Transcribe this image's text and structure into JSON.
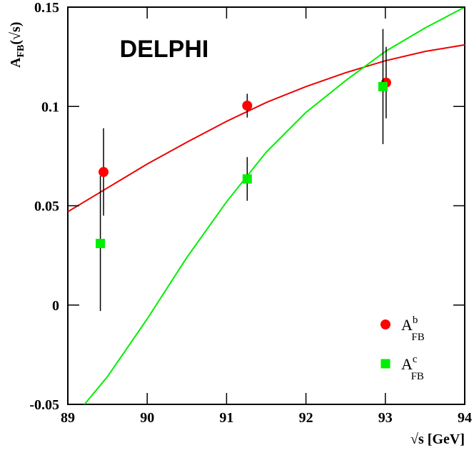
{
  "chart_data": {
    "type": "scatter",
    "annotation": "DELPHI",
    "xlabel": "√s [GeV]",
    "ylabel": {
      "main": "A",
      "sub": "FB",
      "rest": "(√s)"
    },
    "xlim": [
      89,
      94
    ],
    "xticks": [
      89,
      90,
      91,
      92,
      93,
      94
    ],
    "ylim": [
      -0.05,
      0.15
    ],
    "yticks": [
      -0.05,
      0,
      0.05,
      0.1,
      0.15
    ],
    "legend": "lower right",
    "series": [
      {
        "name": "A",
        "name_sup": "b",
        "name_sub": "FB",
        "color": "#ff0000",
        "marker": "circle",
        "x": [
          89.45,
          91.26,
          93.01
        ],
        "values": [
          0.067,
          0.1004,
          0.112
        ],
        "errors": [
          0.022,
          0.006,
          0.018
        ]
      },
      {
        "name": "A",
        "name_sup": "c",
        "name_sub": "FB",
        "color": "#00ee00",
        "marker": "square",
        "x": [
          89.41,
          91.26,
          92.97
        ],
        "values": [
          0.031,
          0.0635,
          0.11
        ],
        "errors": [
          0.034,
          0.011,
          0.029
        ]
      }
    ],
    "curves": [
      {
        "color": "#ee0000",
        "x": [
          89,
          89.5,
          90,
          90.5,
          91,
          91.5,
          92,
          92.5,
          93,
          93.5,
          94
        ],
        "values": [
          0.047,
          0.059,
          0.071,
          0.082,
          0.0925,
          0.102,
          0.11,
          0.117,
          0.123,
          0.1277,
          0.131
        ]
      },
      {
        "color": "#00ee00",
        "x": [
          89.21,
          89.5,
          90,
          90.5,
          91,
          91.5,
          92,
          92.5,
          93,
          93.5,
          94
        ],
        "values": [
          -0.05,
          -0.036,
          -0.007,
          0.024,
          0.052,
          0.077,
          0.097,
          0.113,
          0.1277,
          0.1395,
          0.15
        ]
      }
    ]
  }
}
